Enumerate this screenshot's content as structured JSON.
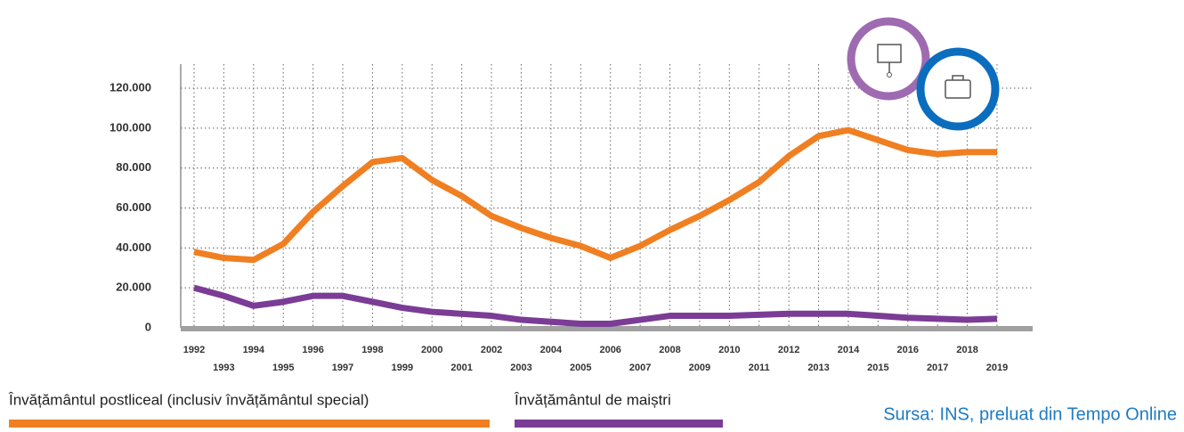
{
  "chart_data": {
    "type": "line",
    "x": [
      1992,
      1993,
      1994,
      1995,
      1996,
      1997,
      1998,
      1999,
      2000,
      2001,
      2002,
      2003,
      2004,
      2005,
      2006,
      2007,
      2008,
      2009,
      2010,
      2011,
      2012,
      2013,
      2014,
      2015,
      2016,
      2017,
      2018,
      2019
    ],
    "xlim": [
      1992,
      2019
    ],
    "ylim": [
      0,
      120000
    ],
    "yticks": [
      0,
      {
        "value": 20000,
        "label": "20.000"
      },
      {
        "value": 40000,
        "label": "40.000"
      },
      {
        "value": 60000,
        "label": "60.000"
      },
      {
        "value": 80000,
        "label": "80.000"
      },
      {
        "value": 100000,
        "label": "100.000"
      },
      {
        "value": 120000,
        "label": "120.000"
      }
    ],
    "grid": true,
    "series": [
      {
        "name": "Învățământul postliceal (inclusiv învățământul special)",
        "color": "#f07f22",
        "values": [
          38000,
          35000,
          34000,
          42000,
          58000,
          71000,
          83000,
          85000,
          74000,
          66000,
          56000,
          50000,
          45000,
          41000,
          35000,
          41000,
          49000,
          56000,
          64000,
          73000,
          86000,
          96000,
          99000,
          94000,
          89000,
          87000,
          88000,
          88000
        ]
      },
      {
        "name": "Învățământul de maiștri",
        "color": "#7b3c96",
        "values": [
          20000,
          16000,
          11000,
          13000,
          16000,
          16000,
          13000,
          10000,
          8000,
          7000,
          6000,
          4000,
          3000,
          2000,
          2000,
          4000,
          6000,
          6000,
          6000,
          6500,
          7000,
          7000,
          7000,
          6000,
          5000,
          4500,
          4000,
          4500
        ]
      }
    ],
    "source": "Sursa: INS, preluat din Tempo Online"
  }
}
